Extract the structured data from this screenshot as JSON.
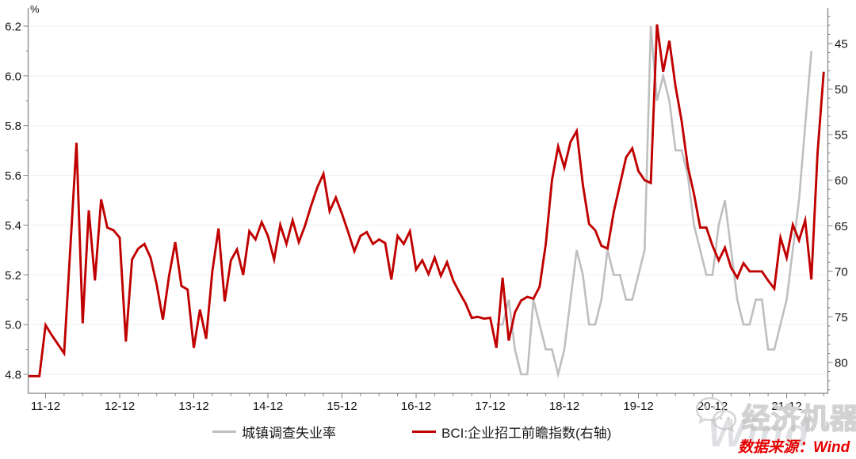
{
  "page": {
    "background": "#ffffff"
  },
  "chart_data": {
    "type": "line",
    "title": "",
    "x_axis": {
      "start_month": "2011-09",
      "major_tick_labels": [
        "11-12",
        "12-12",
        "13-12",
        "14-12",
        "15-12",
        "16-12",
        "17-12",
        "18-12",
        "19-12",
        "20-12",
        "21-12"
      ],
      "major_tick_month_indices": [
        0,
        12,
        24,
        36,
        48,
        60,
        72,
        84,
        96,
        108,
        120
      ],
      "minor_tick_every_months": 3
    },
    "left_axis": {
      "unit_label": "%",
      "min": 4.8,
      "max": 6.2,
      "major_ticks": [
        4.8,
        5.0,
        5.2,
        5.4,
        5.6,
        5.8,
        6.0,
        6.2
      ],
      "major_tick_labels": [
        "4.8",
        "5.0",
        "5.2",
        "5.4",
        "5.6",
        "5.8",
        "6.0",
        "6.2"
      ],
      "minor_step": 0.1
    },
    "right_axis": {
      "inverted": true,
      "min": 45,
      "max": 80,
      "major_ticks": [
        45,
        50,
        55,
        60,
        65,
        70,
        75,
        80
      ],
      "major_tick_labels": [
        "45",
        "50",
        "55",
        "60",
        "65",
        "70",
        "75",
        "80"
      ],
      "minor_step": 1
    },
    "grid": {
      "horizontal": true,
      "color": "#efefef"
    },
    "series": [
      {
        "name": "城镇调查失业率",
        "axis": "left",
        "color": "#bfbfbf",
        "start_month_index": 73,
        "values": [
          5.0,
          5.0,
          5.1,
          4.9,
          4.8,
          4.8,
          5.1,
          5.0,
          4.9,
          4.9,
          4.8,
          4.9,
          5.1,
          5.3,
          5.2,
          5.0,
          5.0,
          5.1,
          5.3,
          5.2,
          5.2,
          5.1,
          5.1,
          5.2,
          5.3,
          6.2,
          5.9,
          6.0,
          5.9,
          5.7,
          5.7,
          5.6,
          5.4,
          5.3,
          5.2,
          5.2,
          5.4,
          5.5,
          5.3,
          5.1,
          5.0,
          5.0,
          5.1,
          5.1,
          4.9,
          4.9,
          5.0,
          5.1,
          5.3,
          5.5,
          5.8,
          6.1
        ]
      },
      {
        "name": "BCI:企业招工前瞻指数(右轴)",
        "axis": "right",
        "color": "#c00000",
        "start_month_index": -3,
        "values": [
          81.5,
          81.5,
          81.5,
          75.9,
          77.0,
          78.0,
          79.0,
          67.5,
          55.9,
          75.7,
          63.3,
          71.0,
          62.1,
          65.2,
          65.5,
          66.3,
          77.7,
          68.7,
          67.5,
          67.0,
          68.5,
          71.5,
          75.3,
          70.5,
          66.8,
          71.6,
          72.0,
          78.4,
          74.2,
          77.4,
          70.0,
          65.3,
          73.3,
          68.8,
          67.6,
          70.4,
          65.6,
          66.5,
          64.6,
          66.1,
          68.7,
          64.9,
          67.0,
          64.4,
          66.8,
          65.0,
          62.8,
          60.8,
          59.3,
          63.4,
          61.9,
          63.7,
          65.7,
          67.8,
          66.1,
          65.7,
          67.0,
          66.5,
          66.9,
          70.9,
          66.1,
          67.0,
          65.6,
          69.8,
          68.8,
          70.3,
          68.5,
          70.5,
          69.0,
          71.0,
          72.3,
          73.5,
          75.1,
          75.0,
          75.2,
          75.1,
          78.4,
          70.7,
          77.6,
          74.5,
          73.2,
          72.8,
          73.0,
          71.7,
          67.0,
          60.0,
          56.3,
          58.6,
          55.8,
          54.6,
          60.5,
          64.8,
          65.5,
          67.2,
          67.5,
          63.5,
          60.5,
          57.5,
          56.5,
          59.0,
          60.0,
          60.3,
          42.9,
          48.1,
          44.7,
          49.7,
          53.5,
          58.5,
          61.5,
          65.2,
          65.2,
          67.2,
          68.8,
          67.4,
          69.6,
          70.7,
          69.1,
          70.0,
          70.0,
          70.0,
          71.0,
          71.9,
          66.3,
          68.5,
          64.9,
          66.6,
          64.4,
          70.9,
          57.0,
          48.1
        ]
      }
    ]
  },
  "legend": {
    "items": [
      {
        "label": "城镇调查失业率",
        "color": "#bfbfbf"
      },
      {
        "label": "BCI:企业招工前瞻指数(右轴)",
        "color": "#c00000"
      }
    ]
  },
  "watermarks": {
    "wechat_brand": "经济机器",
    "wind_logo": "Wind"
  },
  "source": {
    "text": "数据来源：Wind",
    "color": "#e60000"
  },
  "axis_style": {
    "line_color": "#808080",
    "label_color": "#141414"
  }
}
